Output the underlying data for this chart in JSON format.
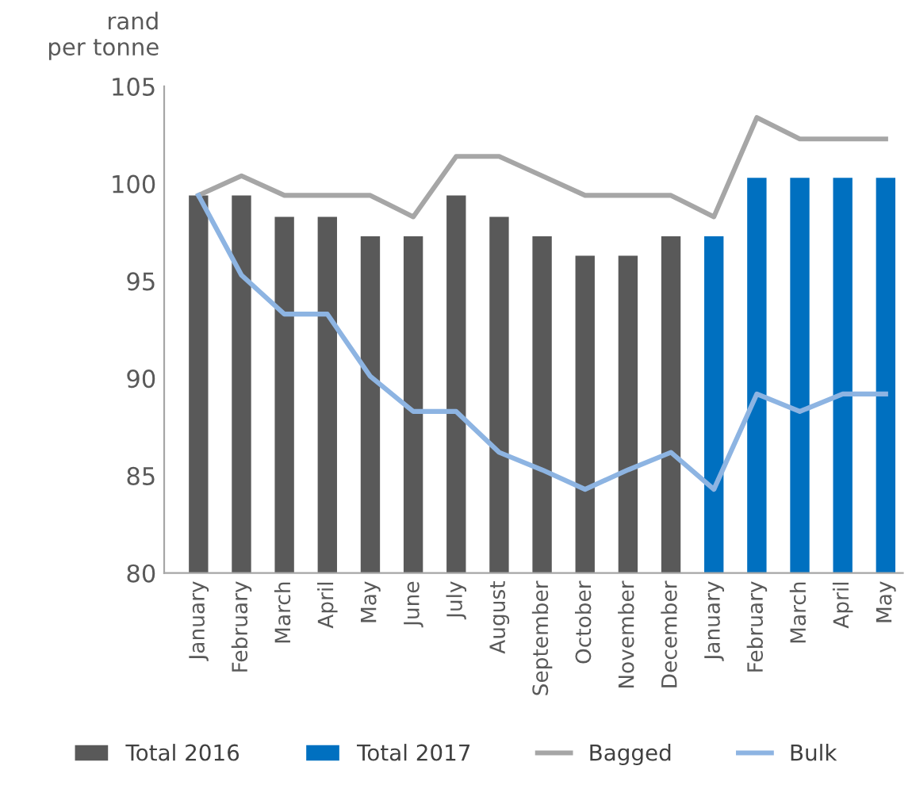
{
  "chart_data": {
    "type": "bar",
    "ylabel": "rand\nper tonne",
    "categories": [
      "January",
      "February",
      "March",
      "April",
      "May",
      "June",
      "July",
      "August",
      "September",
      "October",
      "November",
      "December",
      "January",
      "February",
      "March",
      "April",
      "May"
    ],
    "series": [
      {
        "name": "Total 2016",
        "color": "#595959",
        "values": [
          99.4,
          99.4,
          98.3,
          98.3,
          97.3,
          97.3,
          99.4,
          98.3,
          97.3,
          96.3,
          96.3,
          97.3,
          null,
          null,
          null,
          null,
          null
        ]
      },
      {
        "name": "Total 2017",
        "color": "#0070c0",
        "values": [
          null,
          null,
          null,
          null,
          null,
          null,
          null,
          null,
          null,
          null,
          null,
          null,
          97.3,
          100.3,
          100.3,
          100.3,
          100.3
        ]
      },
      {
        "name": "Bagged",
        "type": "line",
        "color": "#a6a6a6",
        "values": [
          99.4,
          100.4,
          99.4,
          99.4,
          99.4,
          98.3,
          101.4,
          101.4,
          100.4,
          99.4,
          99.4,
          99.4,
          98.3,
          103.4,
          102.3,
          102.3,
          102.3
        ]
      },
      {
        "name": "Bulk",
        "type": "line",
        "color": "#8db4e2",
        "values": [
          99.4,
          95.3,
          93.3,
          93.3,
          90.1,
          88.3,
          88.3,
          86.2,
          85.3,
          84.3,
          85.3,
          86.2,
          84.3,
          89.2,
          88.3,
          89.2,
          89.2
        ]
      }
    ],
    "ylim": [
      80,
      105
    ],
    "yticks": [
      80,
      85,
      90,
      95,
      100,
      105
    ],
    "grid": false,
    "legend": "bottom"
  }
}
